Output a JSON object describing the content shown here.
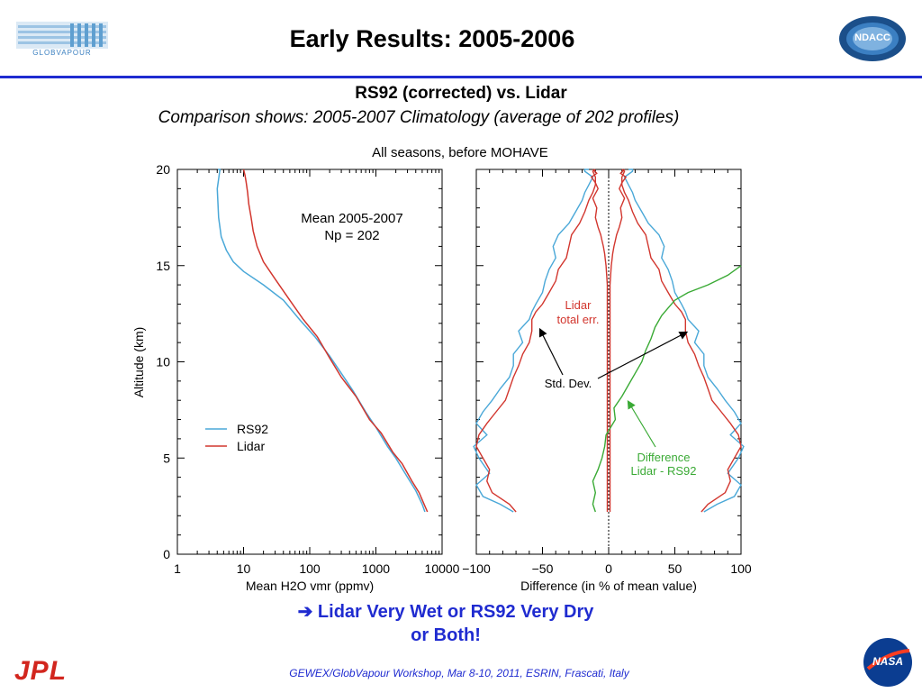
{
  "header": {
    "title": "Early Results: 2005-2006",
    "globvapour_logo_text": "GLOBVAPOUR",
    "ndacc_logo_text": "NDACC"
  },
  "subtitle": "RS92 (corrected) vs. Lidar",
  "subtitle2": "Comparison shows: 2005-2007 Climatology (average of 202 profiles)",
  "conclusion": {
    "line1": "➔ Lidar Very Wet or RS92 Very Dry",
    "line2": "or Both!"
  },
  "footer": {
    "text": "GEWEX/GlobVapour Workshop, Mar 8-10, 2011, ESRIN, Frascati, Italy",
    "jpl_logo_text": "JPL",
    "nasa_logo_text": "NASA"
  },
  "colors": {
    "rs92": "#4aa8d8",
    "lidar": "#d2362e",
    "difference": "#3aaa35",
    "accent": "#1f2bd0"
  },
  "chart_data": [
    {
      "type": "line",
      "title": "All seasons, before MOHAVE",
      "xlabel": "Mean H2O vmr (ppmv)",
      "ylabel": "Altitude (km)",
      "xscale": "log",
      "xlim": [
        1,
        10000
      ],
      "ylim": [
        0,
        20
      ],
      "xticks": [
        "1",
        "10",
        "100",
        "1000",
        "10000"
      ],
      "yticks": [
        "0",
        "5",
        "10",
        "15",
        "20"
      ],
      "annotation": [
        "Mean 2005-2007",
        "Np = 202"
      ],
      "legend": "lower-left",
      "series": [
        {
          "name": "RS92",
          "color": "#4aa8d8",
          "x": [
            5500,
            5000,
            4000,
            3000,
            2000,
            1500,
            1000,
            700,
            450,
            300,
            200,
            120,
            70,
            40,
            20,
            10,
            7,
            5.5,
            4.6,
            4.2,
            4.1,
            4.0,
            4.2,
            4.4,
            4.1
          ],
          "y": [
            2.2,
            2.6,
            3.3,
            4.0,
            5.0,
            5.6,
            6.6,
            7.4,
            8.5,
            9.4,
            10.3,
            11.3,
            12.2,
            13.2,
            14.0,
            14.7,
            15.2,
            15.8,
            16.5,
            17.5,
            18.3,
            19.0,
            19.5,
            20,
            20
          ]
        },
        {
          "name": "Lidar",
          "color": "#d2362e",
          "x": [
            6000,
            5500,
            4500,
            3500,
            2500,
            1800,
            1200,
            800,
            500,
            300,
            200,
            130,
            80,
            50,
            30,
            20,
            16,
            14,
            13,
            12,
            11.5,
            11,
            10.5,
            10
          ],
          "y": [
            2.2,
            2.5,
            3.2,
            3.8,
            4.7,
            5.3,
            6.3,
            7.0,
            8.2,
            9.2,
            10.2,
            11.3,
            12.2,
            13.2,
            14.3,
            15.2,
            16.0,
            16.8,
            17.5,
            18.2,
            18.8,
            19.3,
            19.7,
            20
          ]
        }
      ]
    },
    {
      "type": "line",
      "xlabel": "Difference (in % of mean value)",
      "xlim": [
        -100,
        100
      ],
      "ylim": [
        0,
        20
      ],
      "xticks": [
        "−100",
        "−50",
        "0",
        "50",
        "100"
      ],
      "annotations": [
        "Lidar",
        "total err.",
        "Std. Dev.",
        "Difference",
        "Lidar - RS92"
      ],
      "series": [
        {
          "name": "Std. Dev.",
          "color": "#4aa8d8",
          "mirrored": true,
          "x": [
            72,
            82,
            95,
            100,
            90,
            98,
            102,
            92,
            100,
            95,
            88,
            82,
            75,
            72,
            72,
            65,
            68,
            60,
            58,
            55,
            50,
            48,
            45,
            40,
            42,
            38,
            30,
            25,
            20,
            18,
            15,
            12,
            18,
            18,
            15
          ],
          "y": [
            2.2,
            2.6,
            3.0,
            3.6,
            4.2,
            5.0,
            5.6,
            6.2,
            6.8,
            7.4,
            8.0,
            8.6,
            9.2,
            9.8,
            10.4,
            11.0,
            11.6,
            12.2,
            12.6,
            13.0,
            13.6,
            14.2,
            14.8,
            15.4,
            16.0,
            16.6,
            17.2,
            17.8,
            18.4,
            18.8,
            19.2,
            19.6,
            19.9,
            20,
            20
          ]
        },
        {
          "name": "Lidar total err.",
          "color": "#d2362e",
          "mirrored": true,
          "x": [
            70,
            75,
            88,
            92,
            90,
            95,
            100,
            98,
            92,
            85,
            78,
            75,
            72,
            68,
            65,
            60,
            58,
            58,
            55,
            50,
            45,
            40,
            38,
            32,
            30,
            28,
            22,
            18,
            15,
            12,
            10,
            10,
            12,
            10
          ],
          "y": [
            2.2,
            2.6,
            3.2,
            3.8,
            4.4,
            5.0,
            5.6,
            6.2,
            6.8,
            7.4,
            8.0,
            8.6,
            9.2,
            9.8,
            10.4,
            11.0,
            11.6,
            12.2,
            12.6,
            13.0,
            13.6,
            14.2,
            14.8,
            15.4,
            16.0,
            16.6,
            17.2,
            17.8,
            18.4,
            18.8,
            19.2,
            19.6,
            19.9,
            20
          ]
        },
        {
          "name": "Lidar total err. (inner)",
          "color": "#d2362e",
          "mirrored": true,
          "x": [
            1,
            1,
            1,
            1,
            1,
            1,
            1,
            1,
            1,
            1,
            1,
            1,
            1,
            1.5,
            2,
            2.5,
            3,
            4,
            5,
            6,
            8,
            10,
            9,
            12,
            8,
            10,
            13,
            9,
            12
          ],
          "y": [
            2.2,
            3,
            4,
            5,
            6,
            7,
            8,
            9,
            10,
            11,
            12,
            13,
            14,
            14.5,
            15,
            15.3,
            15.6,
            16.0,
            16.3,
            16.6,
            17.0,
            17.5,
            18,
            18.5,
            19,
            19.3,
            19.6,
            19.8,
            20
          ]
        },
        {
          "name": "Difference Lidar - RS92",
          "color": "#3aaa35",
          "x": [
            -10,
            -12,
            -10,
            -12,
            -8,
            -5,
            -3,
            -2,
            5,
            4,
            10,
            15,
            20,
            25,
            28,
            32,
            35,
            40,
            45,
            50,
            60,
            75,
            90,
            100
          ],
          "y": [
            2.2,
            2.6,
            3.2,
            3.8,
            4.4,
            5.0,
            5.6,
            6.2,
            7.0,
            7.6,
            8.2,
            8.8,
            9.4,
            10.0,
            10.6,
            11.2,
            11.8,
            12.4,
            12.8,
            13.2,
            13.6,
            14.0,
            14.5,
            15.0
          ]
        }
      ]
    }
  ]
}
